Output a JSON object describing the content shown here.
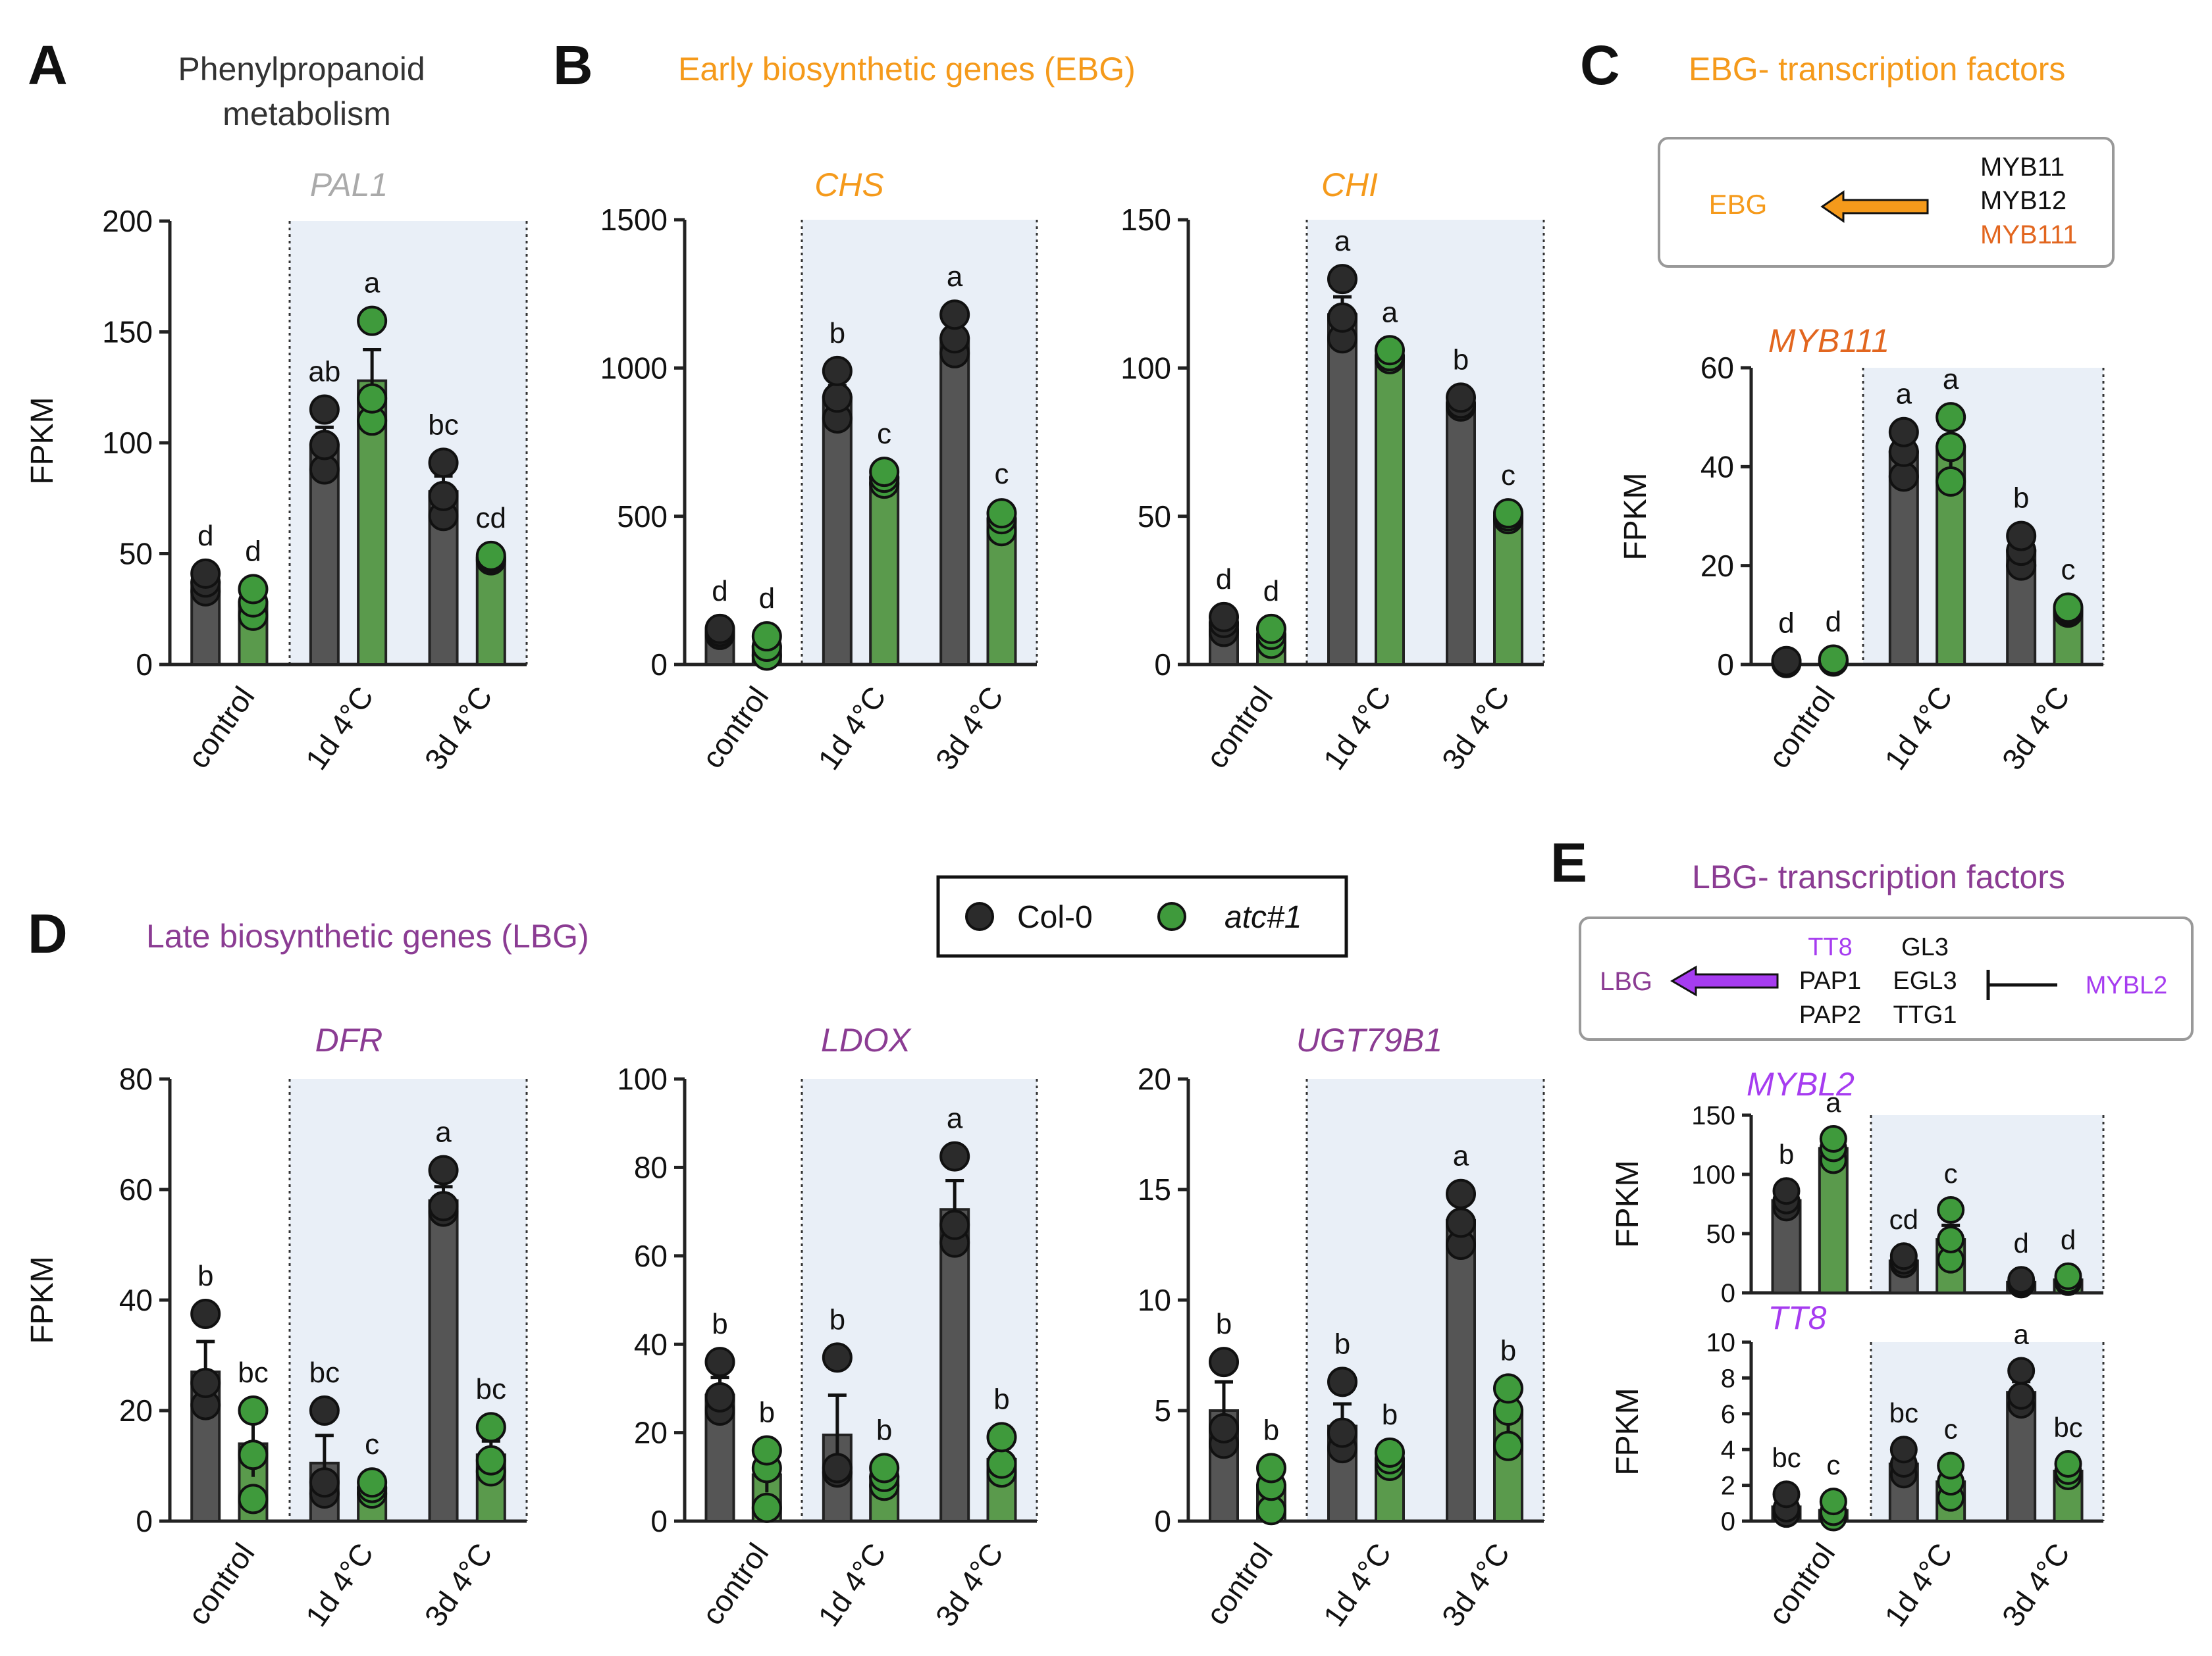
{
  "colors": {
    "col0": "#555555",
    "atc": "#5a9a4c",
    "col0_dot": "#2b2b2b",
    "atc_dot": "#3f9a3c",
    "cold_bg": "#e9eff7",
    "ebg": "#f59a1b",
    "myb111": "#e2661f",
    "lbg": "#8b3c93",
    "purple": "#a63cf0",
    "gray": "#aaaaaa",
    "black": "#111111"
  },
  "panel_labels": {
    "A": "A",
    "B": "B",
    "C": "C",
    "D": "D",
    "E": "E"
  },
  "headers": {
    "A_line1": "Phenylpropanoid",
    "A_line2": "metabolism",
    "B": "Early biosynthetic genes (EBG)",
    "C": "EBG- transcription factors",
    "D": "Late biosynthetic genes (LBG)",
    "E": "LBG- transcription factors"
  },
  "legend": {
    "col0": "Col-0",
    "atc": "atc#1"
  },
  "box_C": {
    "target": "EBG",
    "tfs": [
      "MYB11",
      "MYB12",
      "MYB111"
    ]
  },
  "box_E": {
    "target": "LBG",
    "col1": [
      "TT8",
      "PAP1",
      "PAP2"
    ],
    "col2": [
      "GL3",
      "EGL3",
      "TTG1"
    ],
    "repressor": "MYBL2"
  },
  "chart_data": [
    {
      "id": "PAL1",
      "type": "bar",
      "title": "PAL1",
      "title_color": "#aaaaaa",
      "ylabel": "FPKM",
      "ylim": [
        0,
        200
      ],
      "ticks": [
        0,
        50,
        100,
        150,
        200
      ],
      "categories": [
        "control",
        "1d 4°C",
        "3d 4°C"
      ],
      "series": [
        {
          "name": "Col-0",
          "values": [
            37,
            99,
            78
          ],
          "err": [
            3,
            8,
            7
          ],
          "letters": [
            "d",
            "ab",
            "bc"
          ],
          "points": [
            [
              33,
              37,
              41
            ],
            [
              88,
              99,
              115
            ],
            [
              67,
              76,
              91
            ]
          ]
        },
        {
          "name": "atc#1",
          "values": [
            28,
            128,
            48
          ],
          "err": [
            4,
            14,
            1
          ],
          "letters": [
            "d",
            "a",
            "cd"
          ],
          "points": [
            [
              22,
              28,
              34
            ],
            [
              110,
              120,
              155
            ],
            [
              47,
              48,
              49
            ]
          ]
        }
      ]
    },
    {
      "id": "CHS",
      "type": "bar",
      "title": "CHS",
      "title_color": "#f59a1b",
      "ylabel": "",
      "ylim": [
        0,
        1500
      ],
      "ticks": [
        0,
        500,
        1000,
        1500
      ],
      "categories": [
        "control",
        "1d 4°C",
        "3d 4°C"
      ],
      "series": [
        {
          "name": "Col-0",
          "values": [
            110,
            900,
            1100
          ],
          "err": [
            8,
            40,
            40
          ],
          "letters": [
            "d",
            "b",
            "a"
          ],
          "points": [
            [
              100,
              110,
              120
            ],
            [
              830,
              900,
              990
            ],
            [
              1050,
              1100,
              1180
            ]
          ]
        },
        {
          "name": "atc#1",
          "values": [
            60,
            630,
            490
          ],
          "err": [
            25,
            15,
            25
          ],
          "letters": [
            "d",
            "c",
            "c"
          ],
          "points": [
            [
              30,
              60,
              95
            ],
            [
              610,
              630,
              650
            ],
            [
              450,
              490,
              510
            ]
          ]
        }
      ]
    },
    {
      "id": "CHI",
      "type": "bar",
      "title": "CHI",
      "title_color": "#f59a1b",
      "ylabel": "",
      "ylim": [
        0,
        150
      ],
      "ticks": [
        0,
        50,
        100,
        150
      ],
      "categories": [
        "control",
        "1d 4°C",
        "3d 4°C"
      ],
      "series": [
        {
          "name": "Col-0",
          "values": [
            14,
            118,
            88
          ],
          "err": [
            2,
            6,
            1
          ],
          "letters": [
            "d",
            "a",
            "b"
          ],
          "points": [
            [
              11,
              14,
              16
            ],
            [
              110,
              117,
              130
            ],
            [
              87,
              88,
              90
            ]
          ]
        },
        {
          "name": "atc#1",
          "values": [
            10,
            104,
            50
          ],
          "err": [
            2,
            1,
            1
          ],
          "letters": [
            "d",
            "a",
            "c"
          ],
          "points": [
            [
              7,
              10,
              12
            ],
            [
              103,
              104,
              106
            ],
            [
              49,
              50,
              51
            ]
          ]
        }
      ]
    },
    {
      "id": "MYB111",
      "type": "bar",
      "title": "MYB111",
      "title_color": "#e2661f",
      "ylabel": "FPKM",
      "ylim": [
        0,
        60
      ],
      "ticks": [
        0,
        20,
        40,
        60
      ],
      "categories": [
        "control",
        "1d 4°C",
        "3d 4°C"
      ],
      "series": [
        {
          "name": "Col-0",
          "values": [
            0.5,
            43,
            23
          ],
          "err": [
            0.1,
            2.5,
            2.5
          ],
          "letters": [
            "d",
            "a",
            "b"
          ],
          "points": [
            [
              0.3,
              0.5,
              0.7
            ],
            [
              38,
              43,
              47
            ],
            [
              20,
              23,
              26
            ]
          ]
        },
        {
          "name": "atc#1",
          "values": [
            0.8,
            44,
            11
          ],
          "err": [
            0.1,
            4,
            0.5
          ],
          "letters": [
            "d",
            "a",
            "c"
          ],
          "points": [
            [
              0.6,
              0.8,
              1.0
            ],
            [
              37,
              44,
              50
            ],
            [
              10.5,
              11,
              11.5
            ]
          ]
        }
      ]
    },
    {
      "id": "DFR",
      "type": "bar",
      "title": "DFR",
      "title_color": "#8b3c93",
      "ylabel": "FPKM",
      "ylim": [
        0,
        80
      ],
      "ticks": [
        0,
        20,
        40,
        60,
        80
      ],
      "categories": [
        "control",
        "1d 4°C",
        "3d 4°C"
      ],
      "series": [
        {
          "name": "Col-0",
          "values": [
            27,
            10.5,
            58
          ],
          "err": [
            5.5,
            5,
            2.5
          ],
          "letters": [
            "b",
            "bc",
            "a"
          ],
          "points": [
            [
              21,
              25,
              37.5
            ],
            [
              5,
              7,
              20
            ],
            [
              56,
              57,
              63.5
            ]
          ]
        },
        {
          "name": "atc#1",
          "values": [
            14,
            6,
            12
          ],
          "err": [
            6,
            1,
            2.5
          ],
          "letters": [
            "bc",
            "c",
            "bc"
          ],
          "points": [
            [
              4,
              12,
              20
            ],
            [
              5,
              6,
              7
            ],
            [
              9,
              11,
              17
            ]
          ]
        }
      ]
    },
    {
      "id": "LDOX",
      "type": "bar",
      "title": "LDOX",
      "title_color": "#8b3c93",
      "ylabel": "",
      "ylim": [
        0,
        100
      ],
      "ticks": [
        0,
        20,
        40,
        60,
        80,
        100
      ],
      "categories": [
        "control",
        "1d 4°C",
        "3d 4°C"
      ],
      "series": [
        {
          "name": "Col-0",
          "values": [
            28.5,
            19.5,
            70.5
          ],
          "err": [
            4,
            9,
            6.5
          ],
          "letters": [
            "b",
            "b",
            "a"
          ],
          "points": [
            [
              25,
              28,
              36
            ],
            [
              11,
              12,
              37
            ],
            [
              63,
              67,
              82.5
            ]
          ]
        },
        {
          "name": "atc#1",
          "values": [
            10.5,
            10,
            14
          ],
          "err": [
            4,
            2,
            2.5
          ],
          "letters": [
            "b",
            "b",
            "b"
          ],
          "points": [
            [
              3,
              12,
              16
            ],
            [
              8,
              10,
              12
            ],
            [
              11,
              13,
              19
            ]
          ]
        }
      ]
    },
    {
      "id": "UGT79B1",
      "type": "bar",
      "title": "UGT79B1",
      "title_color": "#8b3c93",
      "ylabel": "",
      "ylim": [
        0,
        20
      ],
      "ticks": [
        0,
        5,
        10,
        15,
        20
      ],
      "categories": [
        "control",
        "1d 4°C",
        "3d 4°C"
      ],
      "series": [
        {
          "name": "Col-0",
          "values": [
            5,
            4.3,
            13.6
          ],
          "err": [
            1.3,
            1,
            1
          ],
          "letters": [
            "b",
            "b",
            "a"
          ],
          "points": [
            [
              3.5,
              4.2,
              7.2
            ],
            [
              3.3,
              4,
              6.3
            ],
            [
              12.5,
              13.5,
              14.8
            ]
          ]
        },
        {
          "name": "atc#1",
          "values": [
            1.6,
            2.8,
            5
          ],
          "err": [
            0.6,
            0.3,
            1
          ],
          "letters": [
            "b",
            "b",
            "b"
          ],
          "points": [
            [
              0.5,
              1.6,
              2.4
            ],
            [
              2.5,
              2.8,
              3.1
            ],
            [
              3.4,
              5,
              6
            ]
          ]
        }
      ]
    },
    {
      "id": "MYBL2",
      "type": "bar",
      "title": "MYBL2",
      "title_color": "#a63cf0",
      "ylabel": "FPKM",
      "ylim": [
        0,
        150
      ],
      "ticks": [
        0,
        50,
        100,
        150
      ],
      "categories": [
        "control",
        "1d 4°C",
        "3d 4°C"
      ],
      "series": [
        {
          "name": "Col-0",
          "values": [
            78,
            27,
            9
          ],
          "err": [
            5,
            3,
            2
          ],
          "letters": [
            "b",
            "cd",
            "d"
          ],
          "points": [
            [
              72,
              78,
              86
            ],
            [
              24,
              27,
              31
            ],
            [
              7,
              9,
              11
            ]
          ]
        },
        {
          "name": "atc#1",
          "values": [
            122,
            45,
            11
          ],
          "err": [
            8,
            12,
            2
          ],
          "letters": [
            "a",
            "c",
            "d"
          ],
          "points": [
            [
              112,
              122,
              130
            ],
            [
              28,
              45,
              70
            ],
            [
              9,
              11,
              14
            ]
          ]
        }
      ]
    },
    {
      "id": "TT8",
      "type": "bar",
      "title": "TT8",
      "title_color": "#a63cf0",
      "ylabel": "FPKM",
      "ylim": [
        0,
        10
      ],
      "ticks": [
        0,
        2,
        4,
        6,
        8,
        10
      ],
      "categories": [
        "control",
        "1d 4°C",
        "3d 4°C"
      ],
      "series": [
        {
          "name": "Col-0",
          "values": [
            0.8,
            3.2,
            7.2
          ],
          "err": [
            0.4,
            0.5,
            0.6
          ],
          "letters": [
            "bc",
            "bc",
            "a"
          ],
          "points": [
            [
              0.4,
              0.7,
              1.5
            ],
            [
              2.6,
              3.2,
              4
            ],
            [
              6.5,
              7,
              8.4
            ]
          ]
        },
        {
          "name": "atc#1",
          "values": [
            0.6,
            2.2,
            2.8
          ],
          "err": [
            0.3,
            0.6,
            0.3
          ],
          "letters": [
            "c",
            "c",
            "bc"
          ],
          "points": [
            [
              0.2,
              0.5,
              1.1
            ],
            [
              1.3,
              2.2,
              3.1
            ],
            [
              2.5,
              2.8,
              3.2
            ]
          ]
        }
      ]
    }
  ]
}
